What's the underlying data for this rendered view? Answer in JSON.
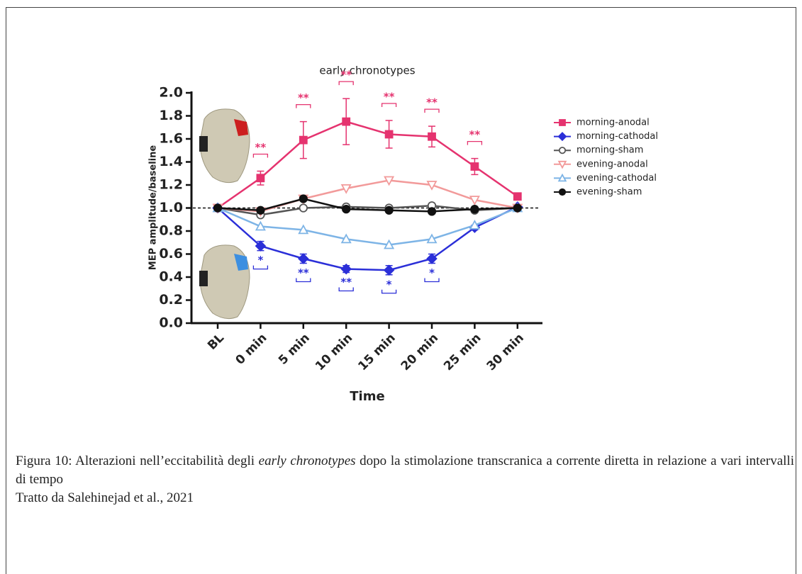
{
  "chart_data": {
    "type": "line",
    "title": "early chronotypes",
    "xlabel": "Time",
    "ylabel": "MEP amplitude/baseline",
    "categories": [
      "BL",
      "0 min",
      "5 min",
      "10 min",
      "15 min",
      "20 min",
      "25 min",
      "30 min"
    ],
    "ylim": [
      0,
      2
    ],
    "yticks": [
      {
        "value": 0,
        "label": "0.0"
      },
      0.2,
      0.4,
      0.6,
      0.8,
      {
        "value": 1,
        "label": "1.0"
      },
      1.2,
      1.4,
      1.6,
      1.8,
      {
        "value": 2,
        "label": "2.0"
      }
    ],
    "reference_line": 1,
    "legend": "right",
    "series": [
      {
        "name": "morning-anodal",
        "color": "#e5336f",
        "marker": "square",
        "filled": true,
        "values": [
          1.0,
          1.26,
          1.59,
          1.75,
          1.64,
          1.62,
          1.36,
          1.1
        ],
        "errors": [
          0,
          0.06,
          0.16,
          0.2,
          0.12,
          0.09,
          0.07,
          0.03
        ]
      },
      {
        "name": "morning-cathodal",
        "color": "#2b2fd8",
        "marker": "diamond",
        "filled": true,
        "values": [
          1.0,
          0.67,
          0.56,
          0.47,
          0.46,
          0.56,
          0.83,
          1.01
        ],
        "errors": [
          0,
          0.04,
          0.04,
          0.03,
          0.04,
          0.04,
          0.02,
          0.02
        ]
      },
      {
        "name": "morning-sham",
        "color": "#555555",
        "marker": "circle",
        "filled": false,
        "values": [
          1.0,
          0.94,
          1.0,
          1.01,
          1.0,
          1.02,
          0.98,
          1.0
        ]
      },
      {
        "name": "evening-anodal",
        "color": "#f29a9a",
        "marker": "triangle-down",
        "filled": false,
        "values": [
          1.0,
          0.97,
          1.08,
          1.17,
          1.24,
          1.2,
          1.07,
          1.0
        ]
      },
      {
        "name": "evening-cathodal",
        "color": "#7db4e6",
        "marker": "triangle",
        "filled": false,
        "values": [
          1.0,
          0.84,
          0.81,
          0.73,
          0.68,
          0.73,
          0.85,
          1.0
        ]
      },
      {
        "name": "evening-sham",
        "color": "#111111",
        "marker": "circle",
        "filled": true,
        "values": [
          1.0,
          0.98,
          1.08,
          0.99,
          0.98,
          0.97,
          0.99,
          1.0
        ]
      }
    ],
    "significance_above": [
      null,
      "**",
      "**",
      "**",
      "**",
      "**",
      "**",
      null
    ],
    "significance_below": [
      null,
      "*",
      "**",
      "**",
      "*",
      "*",
      null,
      null
    ]
  },
  "caption": {
    "before": "Figura 10: Alterazioni nell’eccitabilità degli ",
    "italic": "early chronotypes",
    "after": " dopo la stimolazione transcranica a corrente diretta in relazione a vari intervalli di tempo",
    "source": "Tratto da Salehinejad et al., 2021"
  }
}
